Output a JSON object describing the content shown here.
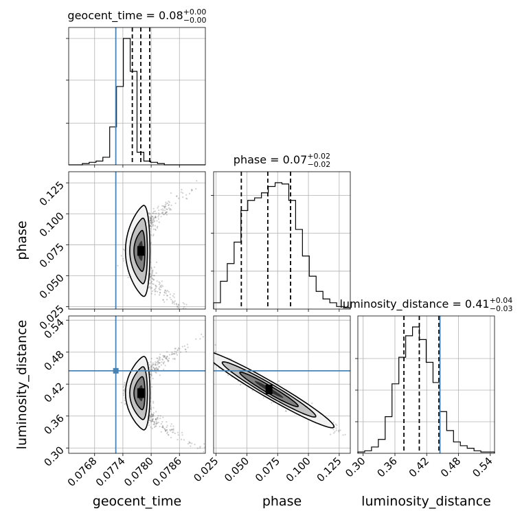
{
  "colors": {
    "truth": "#4682b4",
    "contour": "#000000",
    "scatter": "#555555"
  },
  "chart_data": {
    "type": "corner",
    "grid": true,
    "parameters": [
      {
        "name": "geocent_time",
        "axis_label": "geocent_time",
        "title": "geocent_time = 0.08",
        "title_value": "0.08",
        "err_plus": "+0.00",
        "err_minus": "−0.00",
        "range": [
          0.07625,
          0.07915
        ],
        "ticks": [
          {
            "v": 0.0768,
            "label": "0.0768"
          },
          {
            "v": 0.0774,
            "label": "0.0774"
          },
          {
            "v": 0.078,
            "label": "0.0780"
          },
          {
            "v": 0.0786,
            "label": "0.0786"
          }
        ],
        "truth": 0.07725,
        "quantiles": [
          0.0776,
          0.07778,
          0.07797
        ],
        "hist_values": [
          0,
          0,
          0.01,
          0.02,
          0.03,
          0.06,
          0.3,
          0.62,
          1.0,
          0.74,
          0.1,
          0.03,
          0.02,
          0.01,
          0,
          0,
          0,
          0,
          0,
          0
        ],
        "hist_yticks": [
          0.33,
          0.67,
          1.0
        ]
      },
      {
        "name": "phase",
        "axis_label": "phase",
        "title": "phase = 0.07",
        "title_value": "0.07",
        "err_plus": "+0.02",
        "err_minus": "−0.02",
        "range": [
          0.023,
          0.134
        ],
        "ticks": [
          {
            "v": 0.025,
            "label": "0.025"
          },
          {
            "v": 0.05,
            "label": "0.050"
          },
          {
            "v": 0.075,
            "label": "0.075"
          },
          {
            "v": 0.1,
            "label": "0.100"
          },
          {
            "v": 0.125,
            "label": "0.125"
          }
        ],
        "truth": null,
        "quantiles": [
          0.0455,
          0.067,
          0.0855
        ],
        "hist_values": [
          0.05,
          0.22,
          0.36,
          0.53,
          0.78,
          0.86,
          0.88,
          0.92,
          0.97,
          1.0,
          0.99,
          0.86,
          0.63,
          0.42,
          0.26,
          0.14,
          0.08,
          0.05,
          0.02,
          0.01
        ],
        "hist_yticks": [
          0.3,
          0.6,
          0.9
        ]
      },
      {
        "name": "luminosity_distance",
        "axis_label": "luminosity_distance",
        "title": "luminosity_distance = 0.41",
        "title_value": "0.41",
        "err_plus": "+0.04",
        "err_minus": "−0.03",
        "range": [
          0.29,
          0.548
        ],
        "ticks": [
          {
            "v": 0.3,
            "label": "0.30"
          },
          {
            "v": 0.36,
            "label": "0.36"
          },
          {
            "v": 0.42,
            "label": "0.42"
          },
          {
            "v": 0.48,
            "label": "0.48"
          },
          {
            "v": 0.54,
            "label": "0.54"
          }
        ],
        "truth": 0.445,
        "quantiles": [
          0.377,
          0.406,
          0.443
        ],
        "hist_values": [
          0.01,
          0.02,
          0.05,
          0.11,
          0.29,
          0.55,
          0.76,
          0.93,
          1.0,
          0.9,
          0.72,
          0.56,
          0.33,
          0.18,
          0.09,
          0.06,
          0.04,
          0.02,
          0.01,
          0.01
        ],
        "hist_yticks": [
          0.25,
          0.5,
          0.75
        ]
      }
    ],
    "pairs": [
      {
        "x": "geocent_time",
        "y": "phase",
        "center": [
          0.07778,
          0.07
        ],
        "spread": [
          0.00013,
          0.016
        ],
        "correlation": 0.0,
        "shape": "crescent",
        "truth_marker": false
      },
      {
        "x": "geocent_time",
        "y": "luminosity_distance",
        "center": [
          0.07778,
          0.403
        ],
        "spread": [
          0.00013,
          0.03
        ],
        "correlation": 0.0,
        "shape": "crescent",
        "truth_marker": true
      },
      {
        "x": "phase",
        "y": "luminosity_distance",
        "center": [
          0.068,
          0.41
        ],
        "spread": [
          0.022,
          0.03
        ],
        "correlation": -0.97,
        "shape": "ellipse",
        "truth_marker": false
      }
    ]
  }
}
